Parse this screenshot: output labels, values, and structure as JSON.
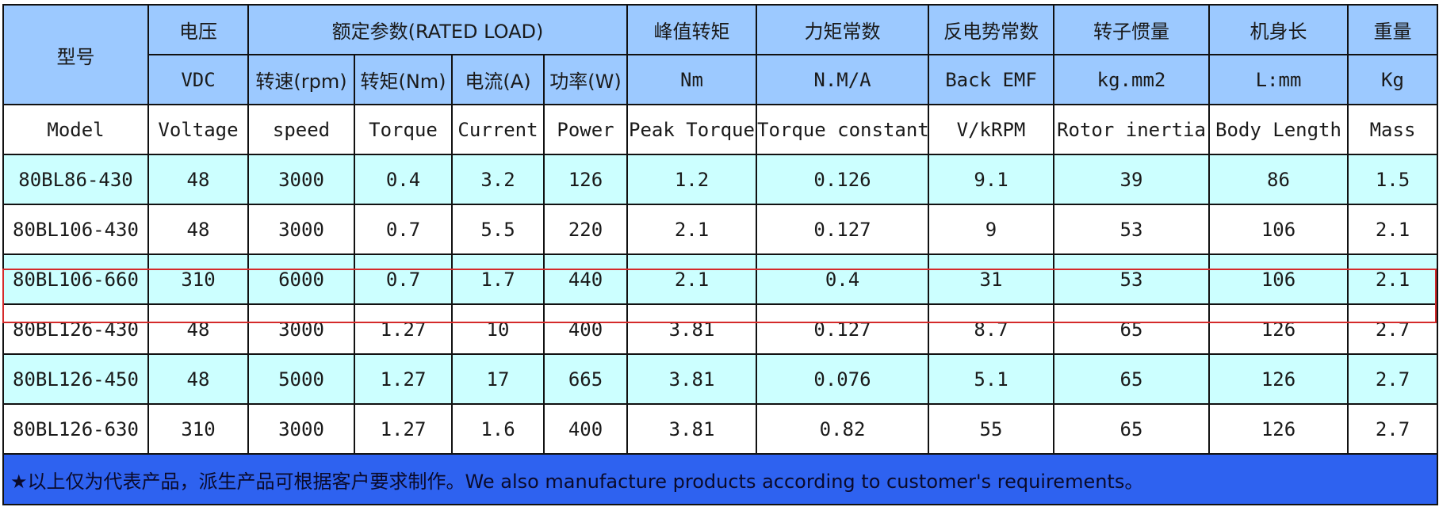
{
  "header": {
    "model_cn": "型号",
    "voltage_cn": "电压",
    "rated_cn": "额定参数(RATED LOAD)",
    "peak_cn": "峰值转矩",
    "torque_const_cn": "力矩常数",
    "back_emf_cn": "反电势常数",
    "inertia_cn": "转子惯量",
    "length_cn": "机身长",
    "mass_cn": "重量",
    "voltage_unit": "VDC",
    "speed_cn": "转速(rpm)",
    "torque_cn": "转矩(Nm)",
    "current_cn": "电流(A)",
    "power_cn": "功率(W)",
    "peak_unit": "Nm",
    "torque_const_unit": "N.M/A",
    "back_emf_unit": "Back EMF",
    "inertia_unit": "kg.mm2",
    "length_unit": "L:mm",
    "mass_unit": "Kg",
    "model_en": "Model",
    "voltage_en": "Voltage",
    "speed_en": "speed",
    "torque_en": "Torque",
    "current_en": "Current",
    "power_en": "Power",
    "peak_en": "Peak Torque",
    "torque_const_en": "Torque constant",
    "back_emf_en": "V/kRPM",
    "inertia_en": "Rotor inertia",
    "length_en": "Body Length",
    "mass_en": "Mass"
  },
  "rows": [
    {
      "model": "80BL86-430",
      "voltage": "48",
      "speed": "3000",
      "torque": "0.4",
      "current": "3.2",
      "power": "126",
      "peak": "1.2",
      "kt": "0.126",
      "ke": "9.1",
      "inertia": "39",
      "length": "86",
      "mass": "1.5"
    },
    {
      "model": "80BL106-430",
      "voltage": "48",
      "speed": "3000",
      "torque": "0.7",
      "current": "5.5",
      "power": "220",
      "peak": "2.1",
      "kt": "0.127",
      "ke": "9",
      "inertia": "53",
      "length": "106",
      "mass": "2.1"
    },
    {
      "model": "80BL106-660",
      "voltage": "310",
      "speed": "6000",
      "torque": "0.7",
      "current": "1.7",
      "power": "440",
      "peak": "2.1",
      "kt": "0.4",
      "ke": "31",
      "inertia": "53",
      "length": "106",
      "mass": "2.1"
    },
    {
      "model": "80BL126-430",
      "voltage": "48",
      "speed": "3000",
      "torque": "1.27",
      "current": "10",
      "power": "400",
      "peak": "3.81",
      "kt": "0.127",
      "ke": "8.7",
      "inertia": "65",
      "length": "126",
      "mass": "2.7"
    },
    {
      "model": "80BL126-450",
      "voltage": "48",
      "speed": "5000",
      "torque": "1.27",
      "current": "17",
      "power": "665",
      "peak": "3.81",
      "kt": "0.076",
      "ke": "5.1",
      "inertia": "65",
      "length": "126",
      "mass": "2.7"
    },
    {
      "model": "80BL126-630",
      "voltage": "310",
      "speed": "3000",
      "torque": "1.27",
      "current": "1.6",
      "power": "400",
      "peak": "3.81",
      "kt": "0.82",
      "ke": "55",
      "inertia": "65",
      "length": "126",
      "mass": "2.7"
    }
  ],
  "footer": {
    "note": "★以上仅为代表产品，派生产品可根据客户要求制作。We also manufacture products according to customer's requirements。"
  },
  "colors": {
    "header_bg": "#9cc9ff",
    "alt_row_bg": "#ccffff",
    "footer_bg": "#2e62f0",
    "highlight_border": "#d42a2a"
  }
}
